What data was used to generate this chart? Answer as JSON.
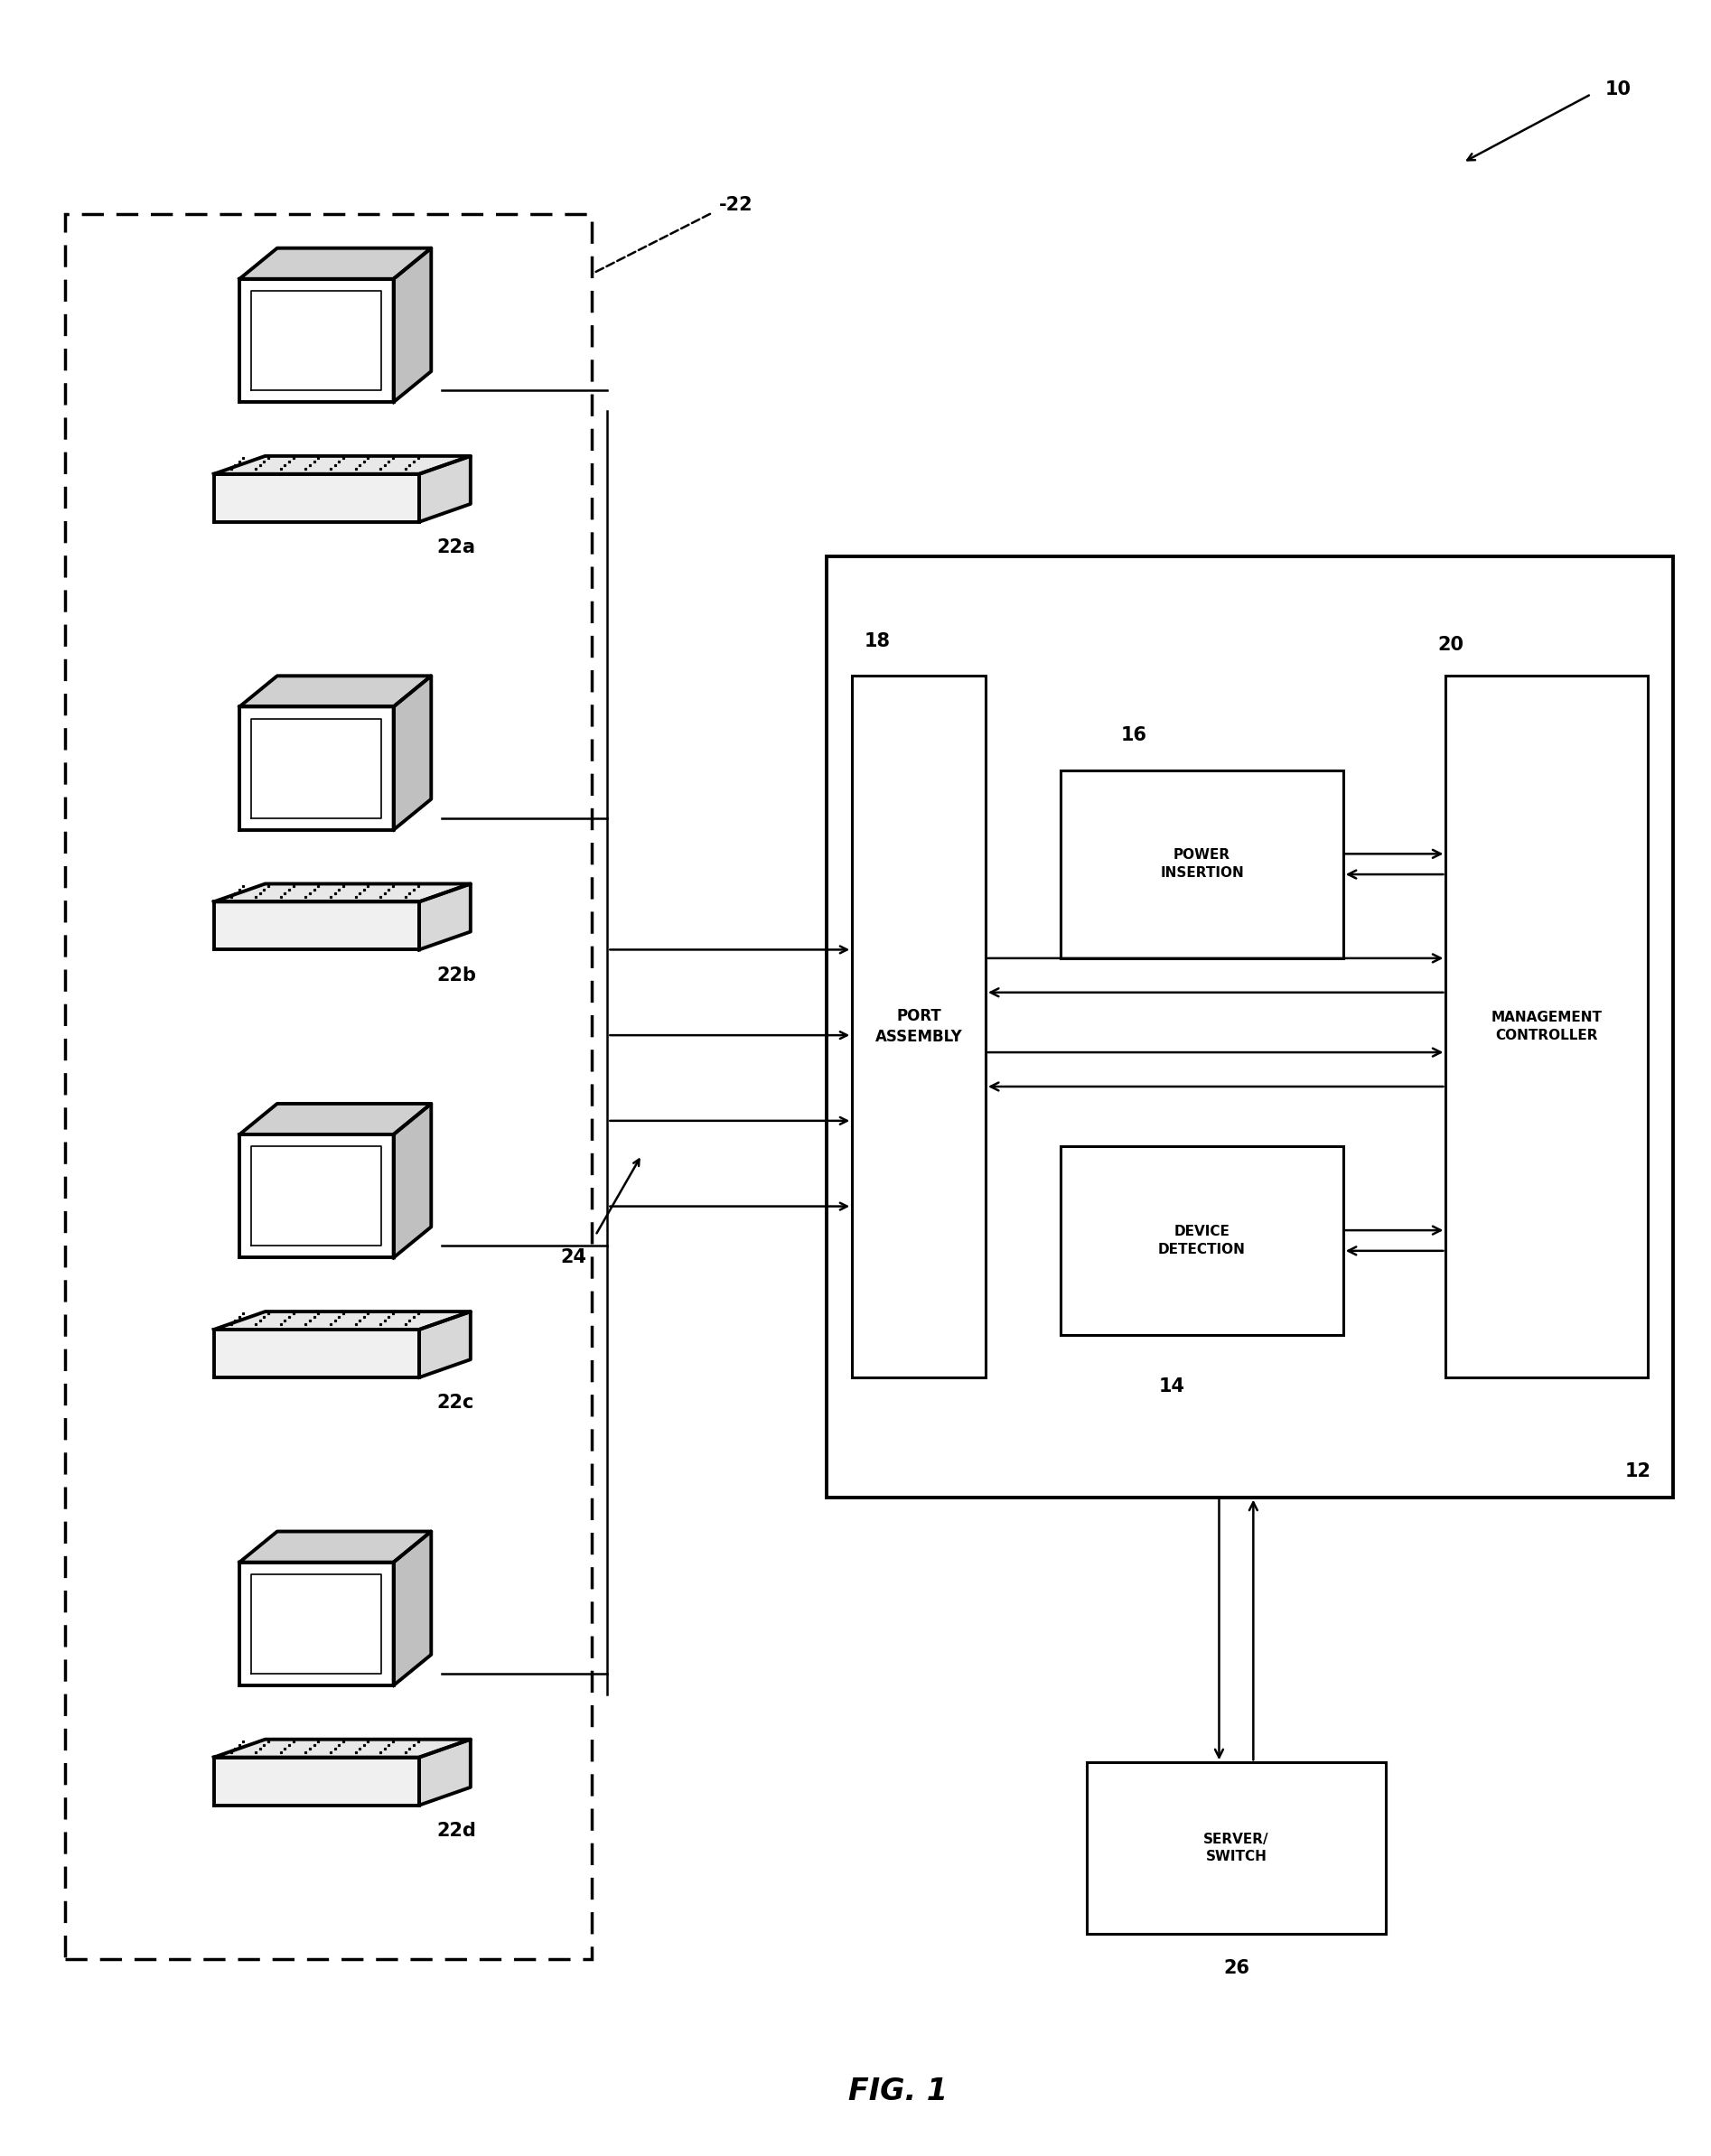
{
  "bg_color": "#ffffff",
  "fig_width": 18.94,
  "fig_height": 23.87,
  "title": "FIG. 1",
  "ref_10": "10",
  "ref_12": "12",
  "ref_14": "14",
  "ref_16": "16",
  "ref_18": "18",
  "ref_20": "20",
  "ref_22": "-22",
  "ref_22a": "22a",
  "ref_22b": "22b",
  "ref_22c": "22c",
  "ref_22d": "22d",
  "ref_24": "24",
  "ref_26": "26",
  "label_port_assembly": "PORT\nASSEMBLY",
  "label_power_insertion": "POWER\nINSERTION",
  "label_device_detection": "DEVICE\nDETECTION",
  "label_management_controller": "MANAGEMENT\nCONTROLLER",
  "label_server_switch": "SERVER/\nSWITCH",
  "laptop_positions": [
    [
      1.85,
      10.2,
      "22a"
    ],
    [
      1.85,
      7.7,
      "22b"
    ],
    [
      1.85,
      5.2,
      "22c"
    ],
    [
      1.85,
      2.7,
      "22d"
    ]
  ]
}
